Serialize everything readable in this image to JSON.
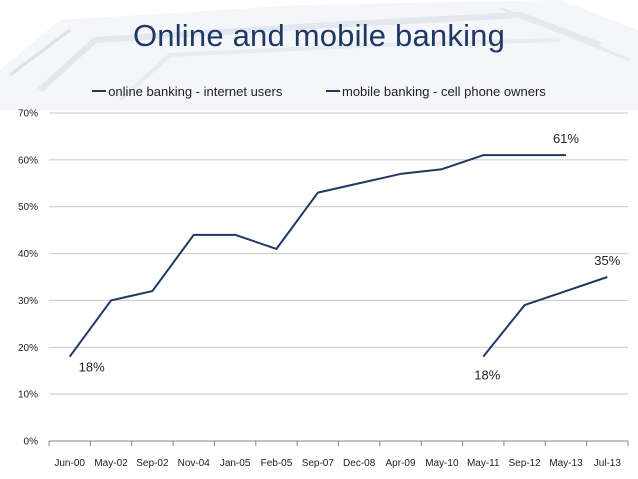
{
  "slide": {
    "title": "Online and mobile banking"
  },
  "colors": {
    "series_line": "#1f3864",
    "title": "#1f3864",
    "gridline": "#c8c8c8",
    "axis": "#888888"
  },
  "chart_data": {
    "type": "line",
    "title": "Online and mobile banking",
    "xlabel": "",
    "ylabel": "",
    "categories": [
      "Jun-00",
      "May-02",
      "Sep-02",
      "Nov-04",
      "Jan-05",
      "Feb-05",
      "Sep-07",
      "Dec-08",
      "Apr-09",
      "May-10",
      "May-11",
      "Sep-12",
      "May-13",
      "Jul-13"
    ],
    "y_ticks": [
      "0%",
      "10%",
      "20%",
      "30%",
      "40%",
      "50%",
      "60%",
      "70%"
    ],
    "ylim": [
      0,
      70
    ],
    "grid": true,
    "legend_position": "top",
    "series": [
      {
        "name": "online banking - internet users",
        "values": [
          18,
          30,
          32,
          44,
          44,
          41,
          53,
          55,
          57,
          58,
          61,
          61,
          61,
          null
        ]
      },
      {
        "name": "mobile banking - cell phone owners",
        "values": [
          null,
          null,
          null,
          null,
          null,
          null,
          null,
          null,
          null,
          null,
          18,
          29,
          32,
          35
        ]
      }
    ],
    "annotations": [
      {
        "text": "18%",
        "series": 0,
        "index": 0,
        "position": "below-right"
      },
      {
        "text": "61%",
        "series": 0,
        "index": 12,
        "position": "above"
      },
      {
        "text": "18%",
        "series": 1,
        "index": 10,
        "position": "below"
      },
      {
        "text": "35%",
        "series": 1,
        "index": 13,
        "position": "above"
      }
    ]
  }
}
